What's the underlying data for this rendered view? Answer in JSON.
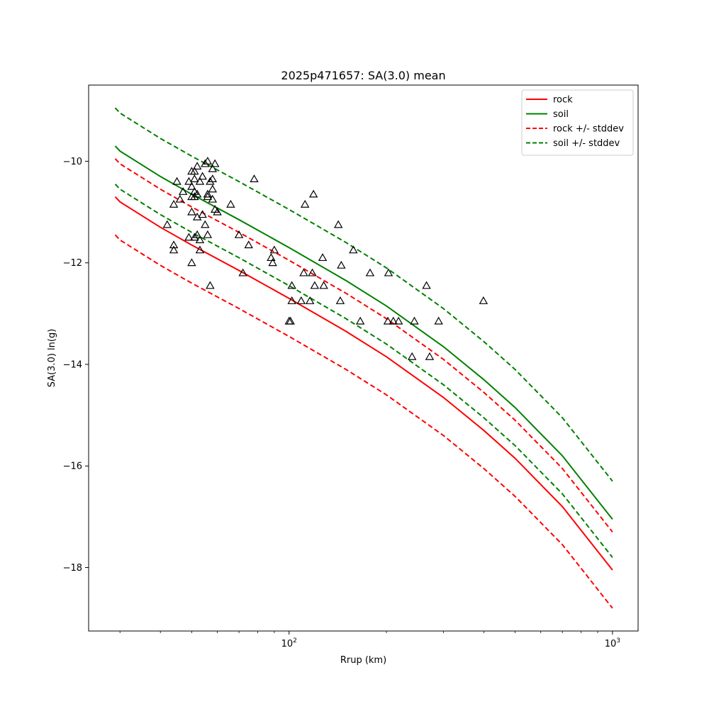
{
  "chart_data": {
    "type": "line",
    "title": "2025p471657: SA(3.0) mean",
    "xlabel": "Rrup (km)",
    "ylabel": "SA(3.0) ln(g)",
    "xscale": "log",
    "xlim": [
      24,
      1200
    ],
    "ylim": [
      -19.25,
      -8.5
    ],
    "x_ticks": [
      {
        "value": 100,
        "base": "10",
        "exp": "2"
      },
      {
        "value": 1000,
        "base": "10",
        "exp": "3"
      }
    ],
    "x_minor_ticks": [
      30,
      40,
      50,
      60,
      70,
      80,
      90,
      200,
      300,
      400,
      500,
      600,
      700,
      800,
      900
    ],
    "y_ticks": [
      {
        "value": -10,
        "label": "−10"
      },
      {
        "value": -12,
        "label": "−12"
      },
      {
        "value": -14,
        "label": "−14"
      },
      {
        "value": -16,
        "label": "−16"
      },
      {
        "value": -18,
        "label": "−18"
      }
    ],
    "grid": false,
    "legend_position": "top-right",
    "series": [
      {
        "name": "rock",
        "color": "#ff0000",
        "dash": "solid",
        "points": [
          [
            29,
            -10.7
          ],
          [
            30,
            -10.8
          ],
          [
            40,
            -11.3
          ],
          [
            50,
            -11.65
          ],
          [
            70,
            -12.15
          ],
          [
            100,
            -12.7
          ],
          [
            150,
            -13.35
          ],
          [
            200,
            -13.85
          ],
          [
            300,
            -14.65
          ],
          [
            400,
            -15.3
          ],
          [
            500,
            -15.85
          ],
          [
            700,
            -16.8
          ],
          [
            1000,
            -18.05
          ]
        ]
      },
      {
        "name": "soil",
        "color": "#008000",
        "dash": "solid",
        "points": [
          [
            29,
            -9.7
          ],
          [
            30,
            -9.8
          ],
          [
            40,
            -10.3
          ],
          [
            50,
            -10.65
          ],
          [
            70,
            -11.15
          ],
          [
            100,
            -11.7
          ],
          [
            150,
            -12.35
          ],
          [
            200,
            -12.85
          ],
          [
            300,
            -13.65
          ],
          [
            400,
            -14.3
          ],
          [
            500,
            -14.85
          ],
          [
            700,
            -15.8
          ],
          [
            1000,
            -17.05
          ]
        ]
      },
      {
        "name": "rock +/- stddev",
        "color": "#ff0000",
        "dash": "dashed",
        "points": [
          [
            29,
            -9.95
          ],
          [
            30,
            -10.05
          ],
          [
            40,
            -10.55
          ],
          [
            50,
            -10.9
          ],
          [
            70,
            -11.4
          ],
          [
            100,
            -11.95
          ],
          [
            150,
            -12.6
          ],
          [
            200,
            -13.1
          ],
          [
            300,
            -13.9
          ],
          [
            400,
            -14.55
          ],
          [
            500,
            -15.1
          ],
          [
            700,
            -16.05
          ],
          [
            1000,
            -17.3
          ]
        ]
      },
      {
        "name": "",
        "color": "#ff0000",
        "dash": "dashed",
        "points": [
          [
            29,
            -11.45
          ],
          [
            30,
            -11.55
          ],
          [
            40,
            -12.05
          ],
          [
            50,
            -12.4
          ],
          [
            70,
            -12.9
          ],
          [
            100,
            -13.45
          ],
          [
            150,
            -14.1
          ],
          [
            200,
            -14.6
          ],
          [
            300,
            -15.4
          ],
          [
            400,
            -16.05
          ],
          [
            500,
            -16.6
          ],
          [
            700,
            -17.55
          ],
          [
            1000,
            -18.8
          ]
        ]
      },
      {
        "name": "soil +/- stddev",
        "color": "#008000",
        "dash": "dashed",
        "points": [
          [
            29,
            -8.95
          ],
          [
            30,
            -9.05
          ],
          [
            40,
            -9.55
          ],
          [
            50,
            -9.9
          ],
          [
            70,
            -10.4
          ],
          [
            100,
            -10.95
          ],
          [
            150,
            -11.6
          ],
          [
            200,
            -12.1
          ],
          [
            300,
            -12.9
          ],
          [
            400,
            -13.55
          ],
          [
            500,
            -14.1
          ],
          [
            700,
            -15.05
          ],
          [
            1000,
            -16.3
          ]
        ]
      },
      {
        "name": "",
        "color": "#008000",
        "dash": "dashed",
        "points": [
          [
            29,
            -10.45
          ],
          [
            30,
            -10.55
          ],
          [
            40,
            -11.05
          ],
          [
            50,
            -11.4
          ],
          [
            70,
            -11.9
          ],
          [
            100,
            -12.45
          ],
          [
            150,
            -13.1
          ],
          [
            200,
            -13.6
          ],
          [
            300,
            -14.4
          ],
          [
            400,
            -15.05
          ],
          [
            500,
            -15.6
          ],
          [
            700,
            -16.55
          ],
          [
            1000,
            -17.8
          ]
        ]
      }
    ],
    "observations": {
      "marker": "triangle-open",
      "color": "#000000",
      "points": [
        [
          42,
          -11.25
        ],
        [
          44,
          -11.65
        ],
        [
          44,
          -11.75
        ],
        [
          44,
          -10.85
        ],
        [
          45,
          -10.4
        ],
        [
          46,
          -10.75
        ],
        [
          47,
          -10.6
        ],
        [
          49,
          -10.4
        ],
        [
          49,
          -11.5
        ],
        [
          50,
          -10.2
        ],
        [
          50,
          -10.5
        ],
        [
          50,
          -10.7
        ],
        [
          50,
          -11.0
        ],
        [
          50,
          -12.0
        ],
        [
          51,
          -10.2
        ],
        [
          51,
          -10.35
        ],
        [
          51,
          -10.6
        ],
        [
          51,
          -10.7
        ],
        [
          51,
          -11.5
        ],
        [
          52,
          -10.1
        ],
        [
          52,
          -10.65
        ],
        [
          52,
          -11.1
        ],
        [
          52,
          -11.45
        ],
        [
          53,
          -10.4
        ],
        [
          53,
          -11.75
        ],
        [
          53,
          -11.55
        ],
        [
          54,
          -10.3
        ],
        [
          54,
          -11.05
        ],
        [
          55,
          -10.05
        ],
        [
          55,
          -11.25
        ],
        [
          56,
          -10.0
        ],
        [
          56,
          -10.65
        ],
        [
          56,
          -10.7
        ],
        [
          56,
          -11.45
        ],
        [
          57,
          -10.4
        ],
        [
          57,
          -12.45
        ],
        [
          58,
          -10.15
        ],
        [
          58,
          -10.35
        ],
        [
          58,
          -10.55
        ],
        [
          58,
          -10.75
        ],
        [
          59,
          -10.05
        ],
        [
          59,
          -10.95
        ],
        [
          60,
          -11.0
        ],
        [
          66,
          -10.85
        ],
        [
          70,
          -11.45
        ],
        [
          72,
          -12.2
        ],
        [
          75,
          -11.65
        ],
        [
          78,
          -10.35
        ],
        [
          88,
          -11.9
        ],
        [
          89,
          -12.0
        ],
        [
          90,
          -11.75
        ],
        [
          100,
          -13.15
        ],
        [
          101,
          -13.15
        ],
        [
          102,
          -12.45
        ],
        [
          102,
          -12.75
        ],
        [
          109,
          -12.75
        ],
        [
          111,
          -12.2
        ],
        [
          112,
          -10.85
        ],
        [
          116,
          -12.75
        ],
        [
          118,
          -12.2
        ],
        [
          119,
          -10.65
        ],
        [
          120,
          -12.45
        ],
        [
          127,
          -11.9
        ],
        [
          128,
          -12.45
        ],
        [
          142,
          -11.25
        ],
        [
          144,
          -12.75
        ],
        [
          145,
          -12.05
        ],
        [
          158,
          -11.75
        ],
        [
          166,
          -13.15
        ],
        [
          178,
          -12.2
        ],
        [
          202,
          -13.15
        ],
        [
          203,
          -12.2
        ],
        [
          210,
          -13.15
        ],
        [
          218,
          -13.15
        ],
        [
          240,
          -13.85
        ],
        [
          244,
          -13.15
        ],
        [
          266,
          -12.45
        ],
        [
          272,
          -13.85
        ],
        [
          290,
          -13.15
        ],
        [
          399,
          -12.75
        ]
      ]
    }
  }
}
